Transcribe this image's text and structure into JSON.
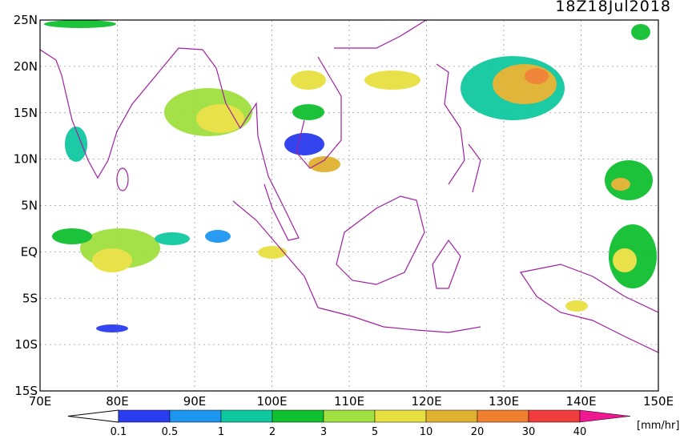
{
  "map": {
    "timestamp": "18Z18Jul2018",
    "lat_labels": [
      "25N",
      "20N",
      "15N",
      "10N",
      "5N",
      "EQ",
      "5S",
      "10S",
      "15S"
    ],
    "lon_labels": [
      "70E",
      "80E",
      "90E",
      "100E",
      "110E",
      "120E",
      "130E",
      "140E",
      "150E"
    ],
    "colorbar": {
      "levels": [
        0.1,
        0.5,
        1,
        2,
        3,
        5,
        10,
        20,
        30,
        40
      ],
      "colors": [
        "#2a3cf0",
        "#1e96f0",
        "#10c8a0",
        "#10c030",
        "#a0e040",
        "#e8e040",
        "#e0b030",
        "#f08030",
        "#f03c3c",
        "#f01890"
      ],
      "unit": "[mm/hr]"
    }
  }
}
